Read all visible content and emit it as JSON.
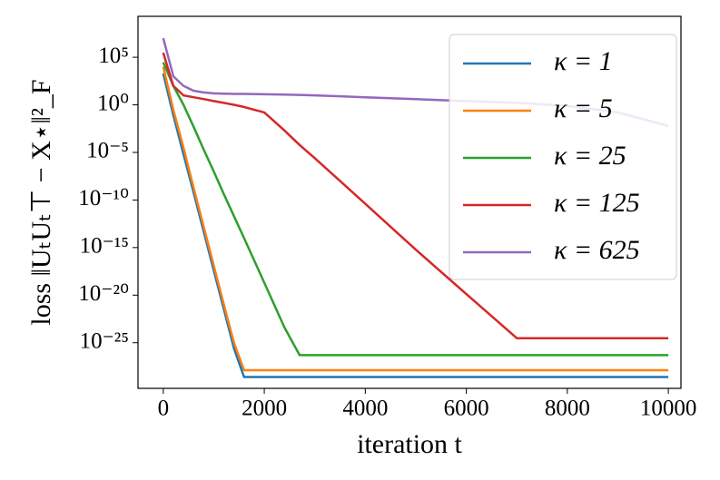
{
  "chart_data": {
    "type": "line",
    "x_label": "iteration t",
    "y_label": "loss ‖UₜUₜ⊤ − X⋆‖²_F",
    "log_y": true,
    "legend_position": "upper right",
    "x": [
      0,
      200,
      400,
      600,
      800,
      1000,
      1200,
      1400,
      1600,
      2000,
      2400,
      2700,
      3000,
      4000,
      5000,
      6000,
      7000,
      8000,
      9000,
      10000
    ],
    "series": [
      {
        "name": "κ = 1",
        "color": "#1f77b4",
        "values": [
          2000,
          0.08,
          6.3e-06,
          6.3e-10,
          5e-14,
          4e-18,
          3.2e-22,
          2.5e-26,
          2.5e-29,
          2.5e-29,
          2.5e-29,
          2.5e-29,
          2.5e-29,
          2.5e-29,
          2.5e-29,
          2.5e-29,
          2.5e-29,
          2.5e-29,
          2.5e-29,
          2.5e-29
        ]
      },
      {
        "name": "κ = 5",
        "color": "#ff7f0e",
        "values": [
          10000,
          0.3,
          3.2e-05,
          2e-09,
          1.6e-13,
          1.3e-17,
          1e-21,
          1e-25,
          1.3e-28,
          1.3e-28,
          1.3e-28,
          1.3e-28,
          1.3e-28,
          1.3e-28,
          1.3e-28,
          1.3e-28,
          1.3e-28,
          1.3e-28,
          1.3e-28,
          1.3e-28
        ]
      },
      {
        "name": "κ = 25",
        "color": "#2ca02c",
        "values": [
          30000,
          100,
          1,
          0.005,
          2e-05,
          1e-07,
          4e-10,
          2e-12,
          1e-14,
          2e-19,
          4e-24,
          5e-27,
          5e-27,
          5e-27,
          5e-27,
          5e-27,
          5e-27,
          5e-27,
          5e-27,
          5e-27
        ]
      },
      {
        "name": "κ = 125",
        "color": "#d62728",
        "values": [
          300000,
          100,
          10,
          6.3,
          4,
          2.5,
          1.6,
          1,
          0.6,
          0.16,
          0.002,
          6e-05,
          2.5e-06,
          4e-11,
          6e-16,
          1.3e-20,
          3e-25,
          3e-25,
          3e-25,
          3e-25
        ]
      },
      {
        "name": "κ = 625",
        "color": "#9467bd",
        "values": [
          10000000,
          1000,
          100,
          30,
          20,
          16,
          15,
          14,
          14,
          13,
          12,
          11,
          10,
          6.3,
          4,
          2.5,
          1.6,
          0.8,
          0.16,
          0.006
        ]
      }
    ],
    "xlim": [
      -500,
      10250
    ],
    "ylim": [
      1.6e-30,
      2000000000.0
    ],
    "xticks": [
      0,
      2000,
      4000,
      6000,
      8000,
      10000
    ],
    "yticks": [
      {
        "value": 100000,
        "label": "10⁵"
      },
      {
        "value": 1,
        "label": "10⁰"
      },
      {
        "value": 1e-05,
        "label": "10⁻⁵"
      },
      {
        "value": 1e-10,
        "label": "10⁻¹⁰"
      },
      {
        "value": 1e-15,
        "label": "10⁻¹⁵"
      },
      {
        "value": 1e-20,
        "label": "10⁻²⁰"
      },
      {
        "value": 1e-25,
        "label": "10⁻²⁵"
      }
    ]
  }
}
